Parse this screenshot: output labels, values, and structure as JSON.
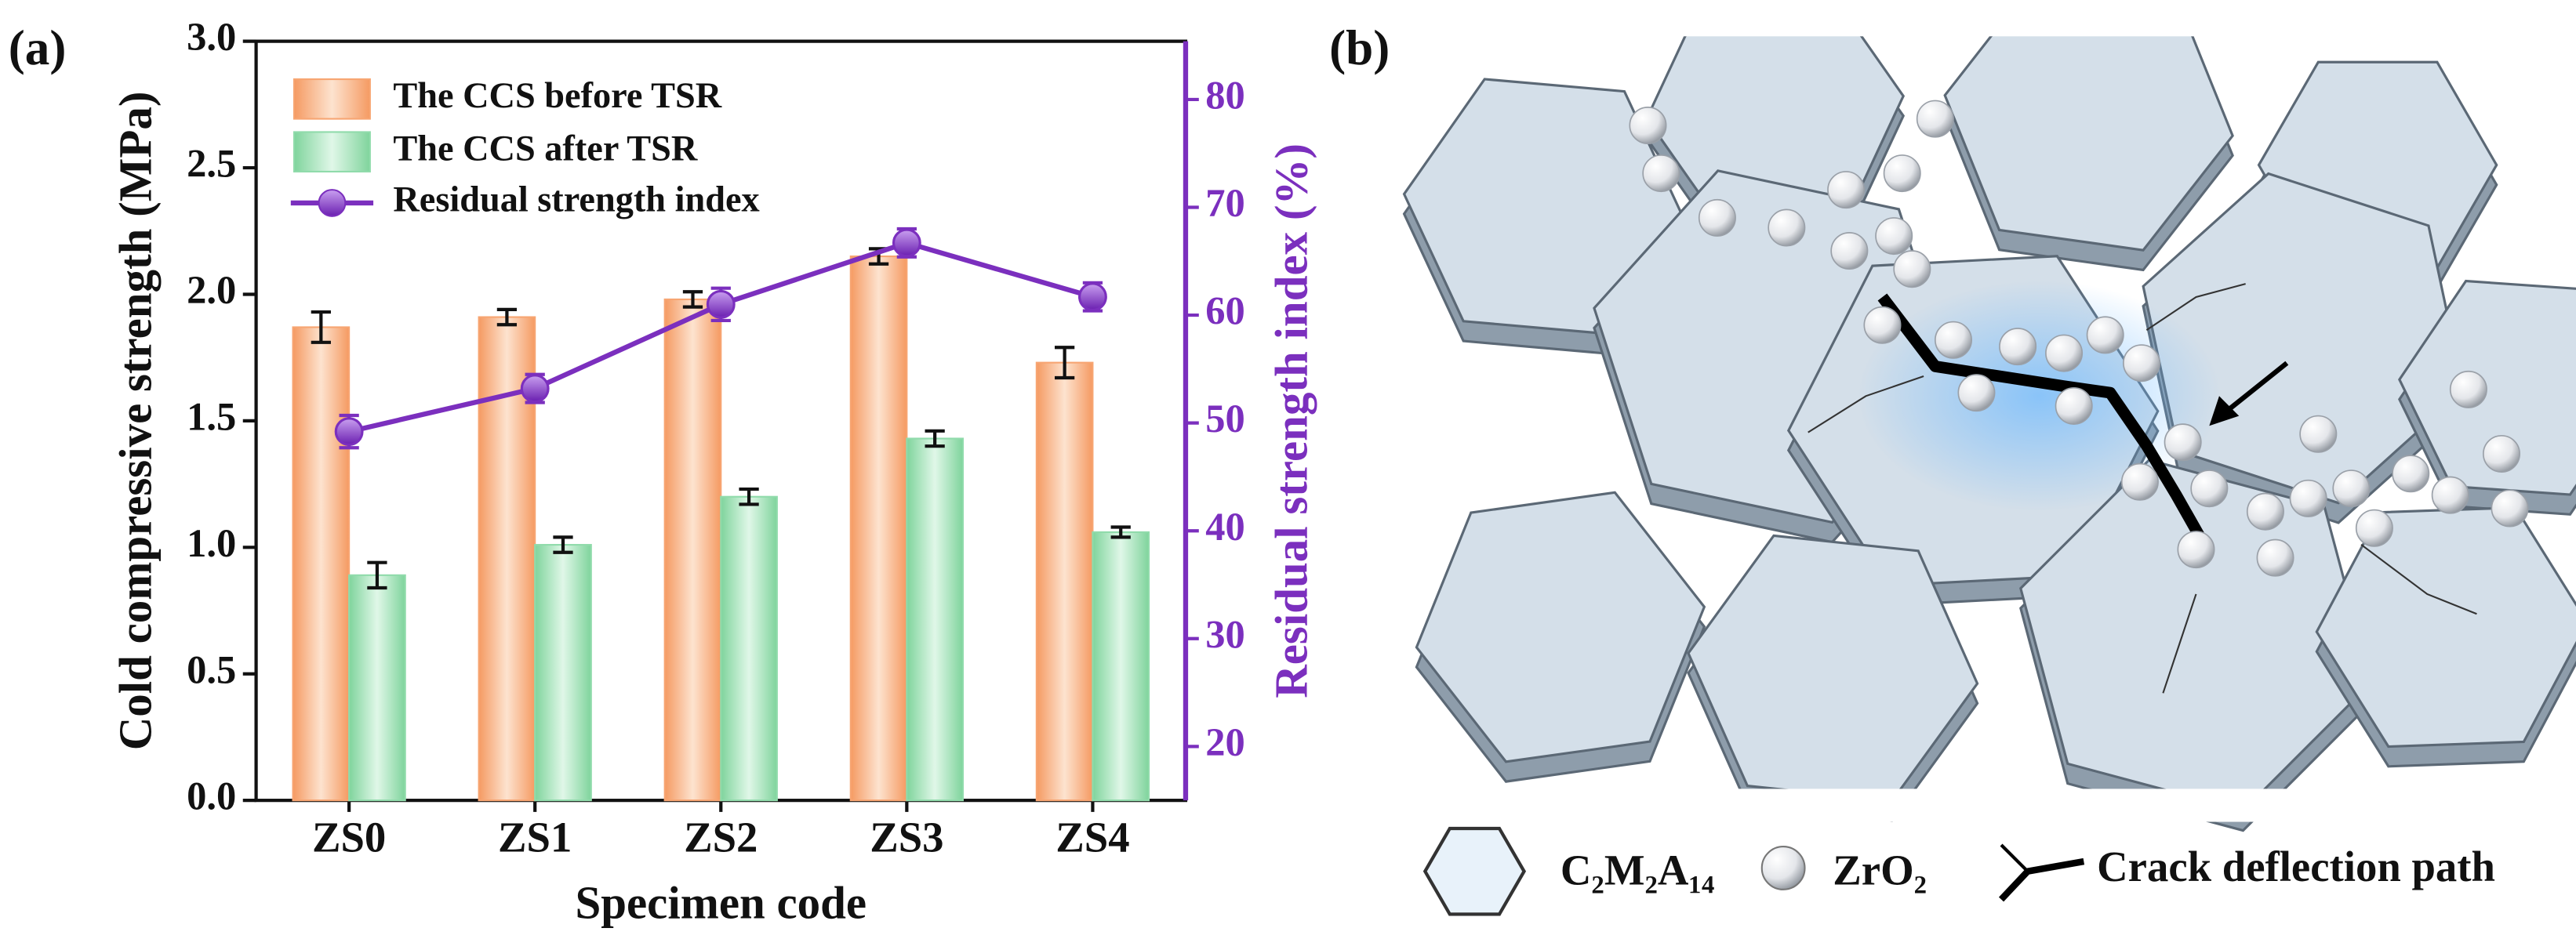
{
  "chart_data": {
    "type": "bar",
    "panel_labels": [
      "(a)",
      "(b)"
    ],
    "x_label": "Specimen code",
    "y_label": "Cold compressive strength  (MPa)",
    "y2_label": "Residual strength index (%)",
    "categories": [
      "ZS0",
      "ZS1",
      "ZS2",
      "ZS3",
      "ZS4"
    ],
    "series": [
      {
        "name": "The CCS before TSR",
        "color": "#f7a572",
        "values": [
          1.87,
          1.91,
          1.98,
          2.15,
          1.73
        ],
        "errors": [
          0.06,
          0.03,
          0.03,
          0.03,
          0.06
        ]
      },
      {
        "name": "The CCS after TSR",
        "color": "#90dbab",
        "values": [
          0.89,
          1.01,
          1.2,
          1.43,
          1.06
        ],
        "errors": [
          0.05,
          0.03,
          0.03,
          0.03,
          0.02
        ]
      },
      {
        "name": "Residual  strength  index",
        "color": "#7b2fbe",
        "type": "line",
        "axis": "y2",
        "values": [
          49.2,
          53.2,
          61.0,
          66.7,
          61.7
        ],
        "errors": [
          1.5,
          1.3,
          1.5,
          1.3,
          1.3
        ]
      }
    ],
    "ylim": [
      0,
      3
    ],
    "yticks": [
      {
        "value": 0,
        "label": "0.0"
      },
      0.5,
      {
        "value": 1,
        "label": "1.0"
      },
      1.5,
      {
        "value": 2,
        "label": "2.0"
      },
      2.5,
      {
        "value": 3,
        "label": "3.0"
      }
    ],
    "y2lim": [
      15,
      85.4
    ],
    "y2ticks": [
      20,
      30,
      40,
      50,
      60,
      70,
      80
    ],
    "legend": "upper left",
    "diagram_legend": [
      "C₂M₂A₁₄",
      "ZrO₂",
      "Crack deflection path"
    ]
  }
}
